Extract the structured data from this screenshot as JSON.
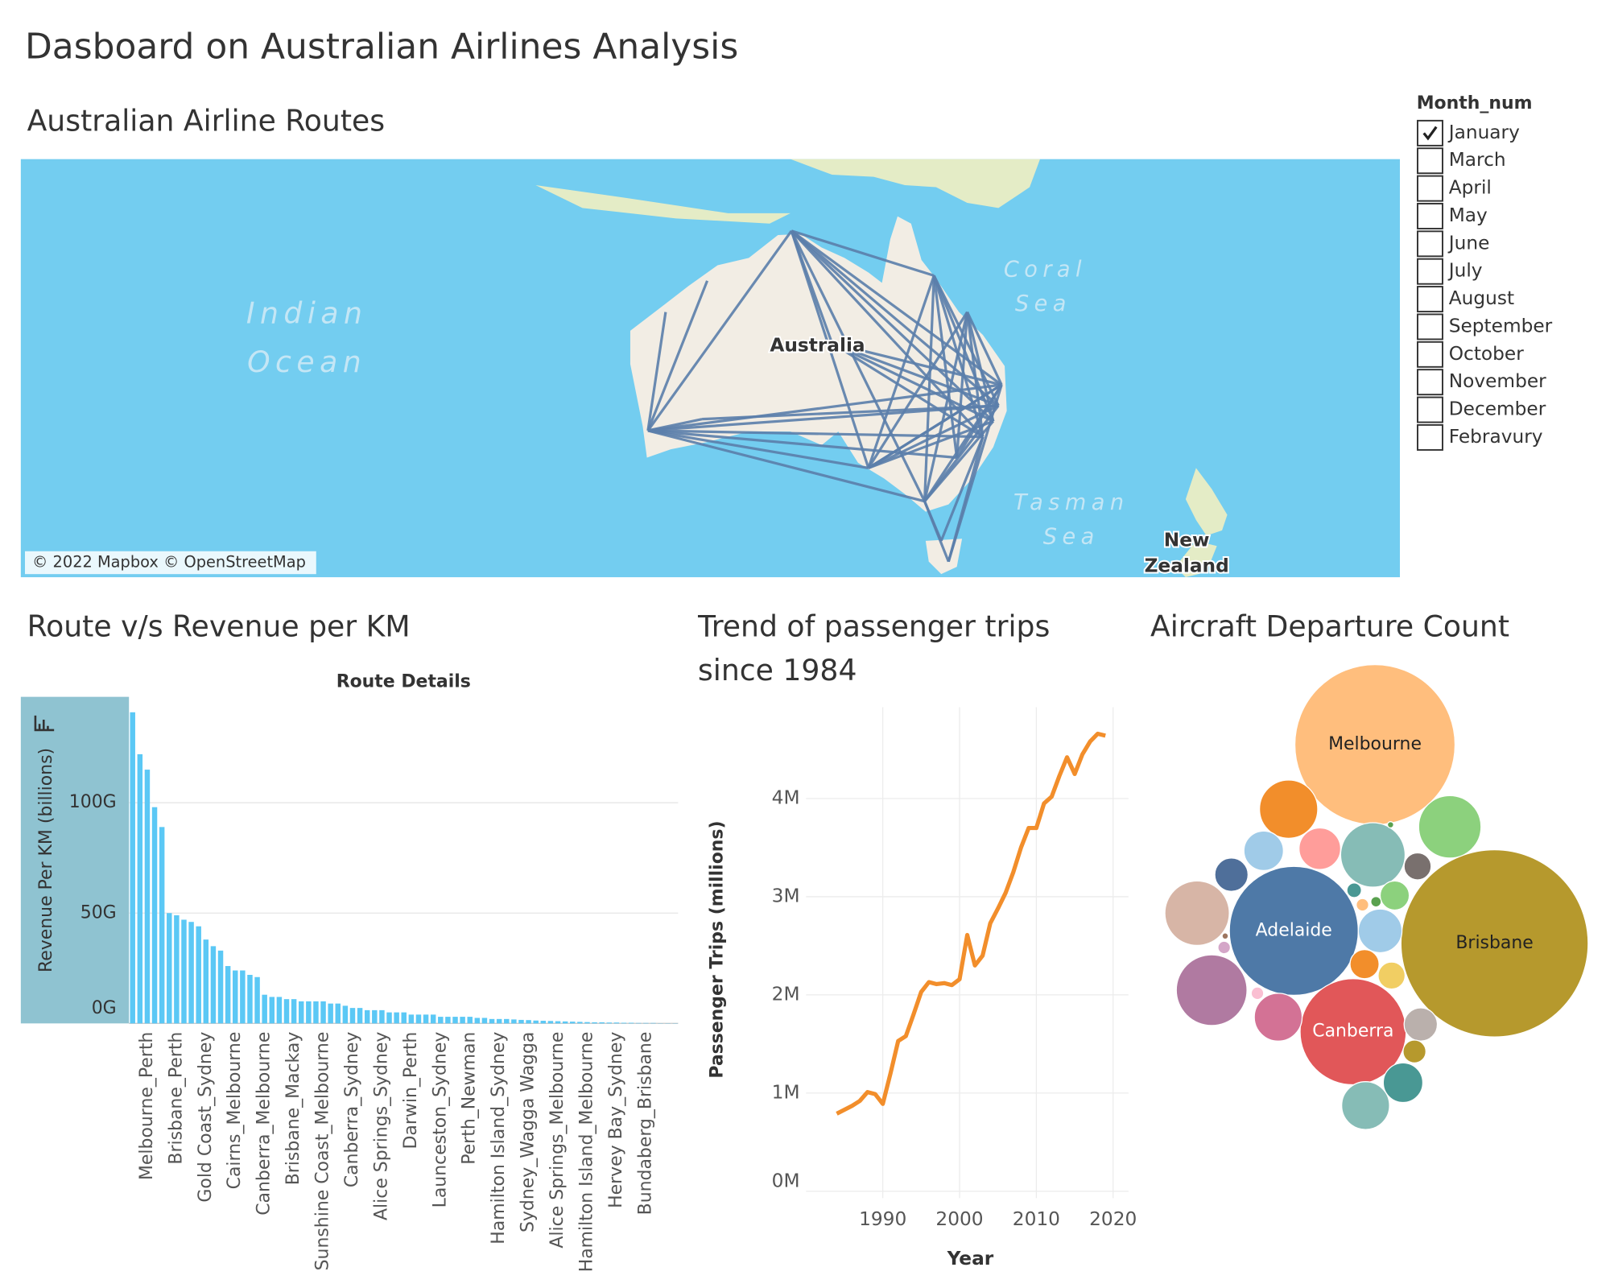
{
  "title": "Dasboard on Australian Airlines Analysis",
  "map": {
    "title": "Australian Airline Routes",
    "labels": [
      "Indian",
      "Ocean",
      "Coral",
      "Sea",
      "Tasman",
      "Sea",
      "Australia",
      "New",
      "Zealand"
    ],
    "attribution": "© 2022 Mapbox © OpenStreetMap"
  },
  "filter": {
    "title": "Month_num",
    "options": [
      "January",
      "March",
      "April",
      "May",
      "June",
      "July",
      "August",
      "September",
      "October",
      "November",
      "December",
      "Febravury"
    ],
    "checked": [
      true,
      false,
      false,
      false,
      false,
      false,
      false,
      false,
      false,
      false,
      false,
      false
    ]
  },
  "chart_data": [
    {
      "type": "bar",
      "title": "Route v/s Revenue per KM",
      "xlabel": "Route Details",
      "ylabel": "Revenue Per KM (billions)",
      "categories": [
        null,
        null,
        "Melbourne_Perth",
        null,
        null,
        null,
        "Brisbane_Perth",
        null,
        null,
        null,
        "Gold Coast_Sydney",
        null,
        null,
        null,
        "Cairns_Melbourne",
        null,
        null,
        null,
        "Canberra_Melbourne",
        null,
        null,
        null,
        "Brisbane_Mackay",
        null,
        null,
        null,
        "Sunshine Coast_Melbourne",
        null,
        null,
        null,
        "Canberra_Sydney",
        null,
        null,
        null,
        "Alice Springs_Sydney",
        null,
        null,
        null,
        "Darwin_Perth",
        null,
        null,
        null,
        "Launceston_Sydney",
        null,
        null,
        null,
        "Perth_Newman",
        null,
        null,
        null,
        "Hamilton Island_Sydney",
        null,
        null,
        null,
        "Sydney_Wagga Wagga",
        null,
        null,
        null,
        "Alice Springs_Melbourne",
        null,
        null,
        null,
        "Hamilton Island_Melbourne",
        null,
        null,
        null,
        "Hervey Bay_Sydney",
        null,
        null,
        null,
        "Bundaberg_Brisbane",
        null,
        null,
        null,
        null
      ],
      "values": [
        141,
        122,
        115,
        98,
        89,
        50,
        49,
        47,
        46,
        44,
        38,
        35,
        33,
        26,
        24,
        24,
        22,
        21,
        13,
        12,
        12,
        11,
        11,
        10,
        10,
        10,
        10,
        9,
        9,
        8,
        7,
        7,
        6,
        6,
        6,
        5,
        5,
        5,
        4,
        4,
        4,
        4,
        3,
        3,
        3,
        3,
        3,
        2.5,
        2.5,
        2,
        2,
        2,
        1.8,
        1.6,
        1.5,
        1.3,
        1.2,
        1.1,
        1,
        0.9,
        0.8,
        0.7,
        0.6,
        0.5,
        0.5,
        0.4,
        0.4,
        0.3,
        0.3,
        0.2,
        0.2,
        0.2,
        0.1,
        0.1,
        0.1
      ],
      "color": "#5bc8f5",
      "ylim": [
        0,
        148
      ],
      "yticks": [
        {
          "value": 0,
          "label": "0G"
        },
        {
          "value": 50,
          "label": "50G"
        },
        {
          "value": 100,
          "label": "100G"
        }
      ],
      "grid": true
    },
    {
      "type": "line",
      "title": "Trend of passenger trips since 1984",
      "xlabel": "Year",
      "ylabel": "Passenger Trips (millions)",
      "x": [
        1984,
        1985,
        1986,
        1987,
        1988,
        1989,
        1990,
        1991,
        1992,
        1993,
        1994,
        1995,
        1996,
        1997,
        1998,
        1999,
        2000,
        2001,
        2002,
        2003,
        2004,
        2005,
        2006,
        2007,
        2008,
        2009,
        2010,
        2011,
        2012,
        2013,
        2014,
        2015,
        2016,
        2017,
        2018,
        2019
      ],
      "values": [
        0.79,
        0.83,
        0.87,
        0.92,
        1.01,
        0.99,
        0.89,
        1.2,
        1.53,
        1.58,
        1.8,
        2.03,
        2.13,
        2.11,
        2.12,
        2.1,
        2.16,
        2.61,
        2.3,
        2.4,
        2.73,
        2.88,
        3.04,
        3.25,
        3.5,
        3.7,
        3.7,
        3.95,
        4.02,
        4.23,
        4.42,
        4.25,
        4.45,
        4.58,
        4.66,
        4.64
      ],
      "color": "#f28e2b",
      "xlim": [
        1980,
        2022
      ],
      "xticks": [
        1990,
        2000,
        2010,
        2020
      ],
      "ylim": [
        -0.07,
        4.93
      ],
      "yticks": [
        {
          "value": 0,
          "label": "0M"
        },
        {
          "value": 1,
          "label": "1M"
        },
        {
          "value": 2,
          "label": "2M"
        },
        {
          "value": 3,
          "label": "3M"
        },
        {
          "value": 4,
          "label": "4M"
        }
      ],
      "grid": true
    },
    {
      "type": "bubble",
      "title": "Aircraft Departure Count",
      "labels": [
        "Melbourne",
        "Brisbane",
        "Adelaide",
        "Canberra",
        null,
        null,
        null,
        null,
        null,
        null,
        null,
        null,
        null,
        null,
        null,
        null,
        null,
        null,
        null,
        null,
        null,
        null,
        null,
        null,
        null,
        null,
        null,
        null,
        null
      ],
      "values": [
        5929,
        8100,
        3844,
        2601,
        784,
        900,
        961,
        400,
        361,
        256,
        961,
        1156,
        529,
        441,
        169,
        196,
        169,
        196,
        256,
        121,
        361,
        529,
        49,
        36,
        25,
        36,
        36,
        9,
        9
      ],
      "colors": [
        "#ffbe7d",
        "#b6992d",
        "#4e79a7",
        "#e15759",
        "#f28e2b",
        "#8cd17d",
        "#86bcb6",
        "#ff9d9a",
        "#a0cbe8",
        "#4f6f9a",
        "#d7b5a6",
        "#b07aa1",
        "#d37295",
        "#a0cbe8",
        "#79706e",
        "#8cd17d",
        "#f1ce63",
        "#f28e2b",
        "#bab0ac",
        "#b6992d",
        "#499894",
        "#86bcb6",
        "#499894",
        "#ffbe7d",
        "#59a14f",
        "#fabfd2",
        "#d4a6c8",
        "#9d7660",
        "#59a14f"
      ]
    }
  ]
}
